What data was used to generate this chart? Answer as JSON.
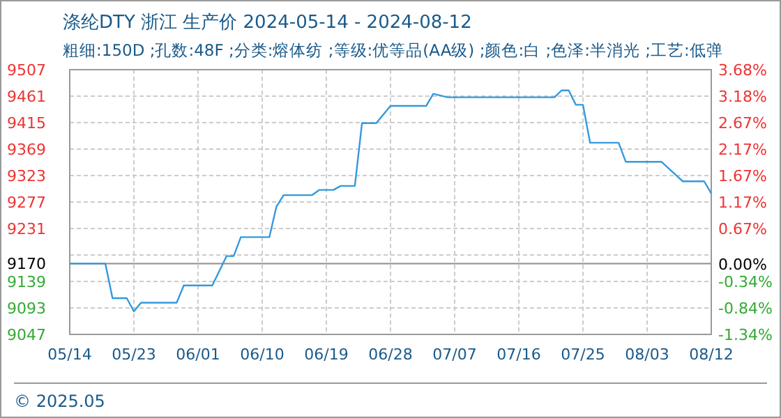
{
  "chart_data": {
    "type": "line",
    "title": "涤纶DTY 浙江 生产价 2024-05-14 - 2024-08-12",
    "subtitle": "粗细:150D ;孔数:48F ;分类:熔体纺 ;等级:优等品(AA级) ;颜色:白 ;色泽:半消光 ;工艺:低弹",
    "x": [
      "2024-05-14",
      "2024-05-19",
      "2024-05-20",
      "2024-05-22",
      "2024-05-23",
      "2024-05-24",
      "2024-05-29",
      "2024-05-30",
      "2024-06-03",
      "2024-06-05",
      "2024-06-06",
      "2024-06-07",
      "2024-06-11",
      "2024-06-12",
      "2024-06-13",
      "2024-06-17",
      "2024-06-18",
      "2024-06-20",
      "2024-06-21",
      "2024-06-23",
      "2024-06-24",
      "2024-06-26",
      "2024-06-28",
      "2024-07-03",
      "2024-07-04",
      "2024-07-06",
      "2024-07-21",
      "2024-07-22",
      "2024-07-23",
      "2024-07-24",
      "2024-07-25",
      "2024-07-26",
      "2024-07-30",
      "2024-07-31",
      "2024-08-05",
      "2024-08-08",
      "2024-08-11",
      "2024-08-12"
    ],
    "series": [
      {
        "color": "#3399dd",
        "values": [
          9170,
          9170,
          9110,
          9110,
          9087,
          9102,
          9102,
          9132,
          9132,
          9183,
          9183,
          9216,
          9216,
          9269,
          9289,
          9289,
          9298,
          9298,
          9305,
          9305,
          9414,
          9414,
          9444,
          9444,
          9465,
          9459,
          9459,
          9471,
          9471,
          9446,
          9446,
          9380,
          9380,
          9347,
          9347,
          9313,
          9313,
          9292
        ]
      }
    ],
    "xlim": [
      "2024-05-14",
      "2024-08-12"
    ],
    "xticks": [
      {
        "value": "2024-05-14",
        "label": "05/14"
      },
      {
        "value": "2024-05-23",
        "label": "05/23"
      },
      {
        "value": "2024-06-01",
        "label": "06/01"
      },
      {
        "value": "2024-06-10",
        "label": "06/10"
      },
      {
        "value": "2024-06-19",
        "label": "06/19"
      },
      {
        "value": "2024-06-28",
        "label": "06/28"
      },
      {
        "value": "2024-07-07",
        "label": "07/07"
      },
      {
        "value": "2024-07-16",
        "label": "07/16"
      },
      {
        "value": "2024-07-25",
        "label": "07/25"
      },
      {
        "value": "2024-08-03",
        "label": "08/03"
      },
      {
        "value": "2024-08-12",
        "label": "08/12"
      }
    ],
    "ylim": [
      9047,
      9507
    ],
    "yticks": [
      9047,
      9093,
      9139,
      {
        "value": 9185,
        "label": null
      },
      9231,
      9277,
      9323,
      9369,
      9415,
      9461,
      9507
    ],
    "y2lim": [
      -1.34,
      3.68
    ],
    "y2ticks": [
      {
        "value": -1.34,
        "label": "-1.34%"
      },
      {
        "value": -0.84,
        "label": "-0.84%"
      },
      {
        "value": -0.34,
        "label": "-0.34%"
      },
      {
        "value": 0,
        "label": "0.00%"
      },
      {
        "value": 0.67,
        "label": "0.67%"
      },
      {
        "value": 1.17,
        "label": "1.17%"
      },
      {
        "value": 1.67,
        "label": "1.67%"
      },
      {
        "value": 2.17,
        "label": "2.17%"
      },
      {
        "value": 2.67,
        "label": "2.67%"
      },
      {
        "value": 3.18,
        "label": "3.18%"
      },
      {
        "value": 3.68,
        "label": "3.68%"
      }
    ],
    "ref_lines": [
      {
        "axis": "y",
        "value": 9170,
        "label": "9170",
        "color": "#999999"
      }
    ],
    "grid": true,
    "annotations": [
      "© 2025.05"
    ]
  }
}
